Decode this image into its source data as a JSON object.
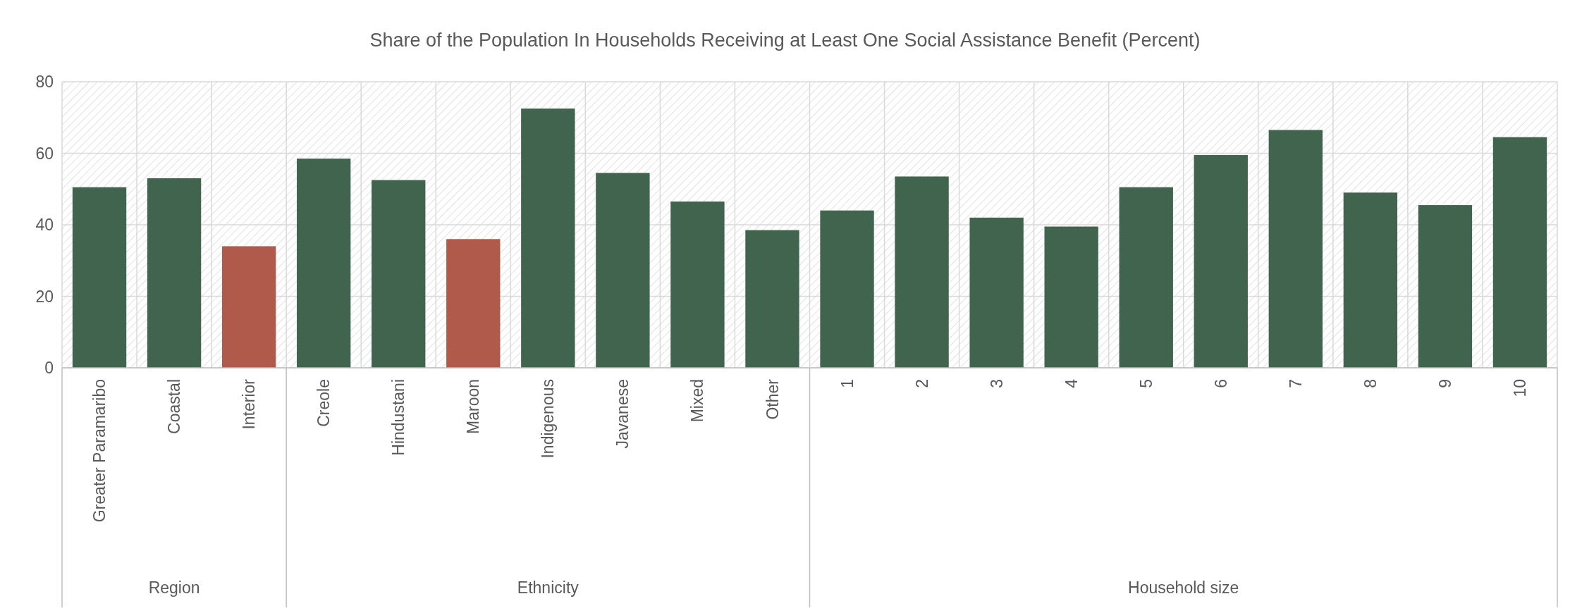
{
  "chart_data": {
    "type": "bar",
    "title": "Share of the Population In Households Receiving at Least One Social Assistance Benefit (Percent)",
    "categories": [
      "Greater Paramaribo",
      "Coastal",
      "Interior",
      "Creole",
      "Hindustani",
      "Maroon",
      "Indigenous",
      "Javanese",
      "Mixed",
      "Other",
      "1",
      "2",
      "3",
      "4",
      "5",
      "6",
      "7",
      "8",
      "9",
      "10"
    ],
    "values": [
      50.5,
      53,
      34,
      58.5,
      52.5,
      36,
      72.5,
      54.5,
      46.5,
      38.5,
      44,
      53.5,
      42,
      39.5,
      50.5,
      59.5,
      66.5,
      49,
      45.5,
      64.5
    ],
    "colors": [
      "#41644f",
      "#41644f",
      "#b05a4c",
      "#41644f",
      "#41644f",
      "#b05a4c",
      "#41644f",
      "#41644f",
      "#41644f",
      "#41644f",
      "#41644f",
      "#41644f",
      "#41644f",
      "#41644f",
      "#41644f",
      "#41644f",
      "#41644f",
      "#41644f",
      "#41644f",
      "#41644f"
    ],
    "ylim": [
      0,
      80
    ],
    "yticks": [
      0,
      20,
      40,
      60,
      80
    ],
    "grid": true,
    "annotations": [
      "Region",
      "Ethnicity",
      "Household size"
    ]
  }
}
